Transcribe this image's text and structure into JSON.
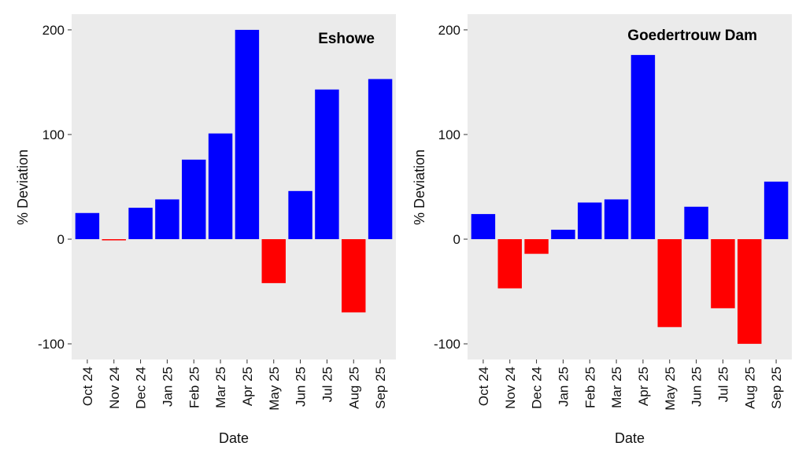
{
  "chart_data": [
    {
      "type": "bar",
      "title": "Eshowe",
      "xlabel": "Date",
      "ylabel": "% Deviation",
      "ylim": [
        -115,
        215
      ],
      "yticks": [
        "200",
        "100",
        "0",
        "-100"
      ],
      "categories": [
        "Oct 24",
        "Nov 24",
        "Dec 24",
        "Jan 25",
        "Feb 25",
        "Mar 25",
        "Apr 25",
        "May 25",
        "Jun 25",
        "Jul 25",
        "Aug 25",
        "Sep 25"
      ],
      "values": [
        25,
        -1,
        30,
        38,
        76,
        101,
        200,
        -42,
        46,
        143,
        -70,
        153
      ],
      "positive_color": "#0000ff",
      "negative_color": "#ff0000",
      "background_color": "#ebebeb"
    },
    {
      "type": "bar",
      "title": "Goedertrouw Dam",
      "xlabel": "Date",
      "ylabel": "% Deviation",
      "ylim": [
        -115,
        215
      ],
      "yticks": [
        "200",
        "100",
        "0",
        "-100"
      ],
      "categories": [
        "Oct 24",
        "Nov 24",
        "Dec 24",
        "Jan 25",
        "Feb 25",
        "Mar 25",
        "Apr 25",
        "May 25",
        "Jun 25",
        "Jul 25",
        "Aug 25",
        "Sep 25"
      ],
      "values": [
        24,
        -47,
        -14,
        9,
        35,
        38,
        176,
        -84,
        31,
        -66,
        -100,
        55
      ],
      "positive_color": "#0000ff",
      "negative_color": "#ff0000",
      "background_color": "#ebebeb"
    }
  ]
}
